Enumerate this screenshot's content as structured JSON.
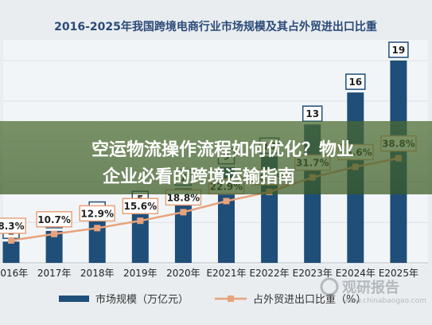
{
  "chart_data": {
    "type": "bar",
    "title": "2016-2025年我国跨境电商行业市场规模及其占外贸进出口比重",
    "categories": [
      "2016年",
      "2017年",
      "2018年",
      "2019年",
      "2020年",
      "E2021年",
      "E2022年",
      "E2023年",
      "E2024年",
      "E2025年"
    ],
    "series": [
      {
        "name": "市场规模（万亿元）",
        "type": "bar",
        "values": [
          2,
          3,
          4,
          5,
          7,
          9,
          10,
          13,
          16,
          19
        ],
        "labels": [
          "2",
          "3",
          "4",
          "5",
          "7",
          "9",
          "10",
          "13",
          "16",
          "19"
        ]
      },
      {
        "name": "占外贸进出口比重（%）",
        "type": "line",
        "values": [
          8.3,
          10.7,
          12.9,
          15.6,
          18.8,
          22.9,
          26.3,
          31.7,
          35.6,
          38.8
        ],
        "labels": [
          "8.3%",
          "10.7%",
          "12.9%",
          "15.6%",
          "18.8%",
          "22.9%",
          "26.3%",
          "31.7%",
          "35.6%",
          "38.8%"
        ]
      }
    ],
    "ylim_bar": [
      0,
      19
    ],
    "ylim_line": [
      0,
      75
    ],
    "grid": true,
    "legend": "bottom",
    "colors": {
      "bar": "#1f4e79",
      "line": "#e8a27c",
      "title": "#2b4a78"
    }
  },
  "overlay": {
    "line1": "空运物流操作流程如何优化？物业",
    "line2": "企业必看的跨境运输指南"
  },
  "watermark": {
    "brand": "观研报告",
    "url": "www.chinabaogao.com"
  }
}
